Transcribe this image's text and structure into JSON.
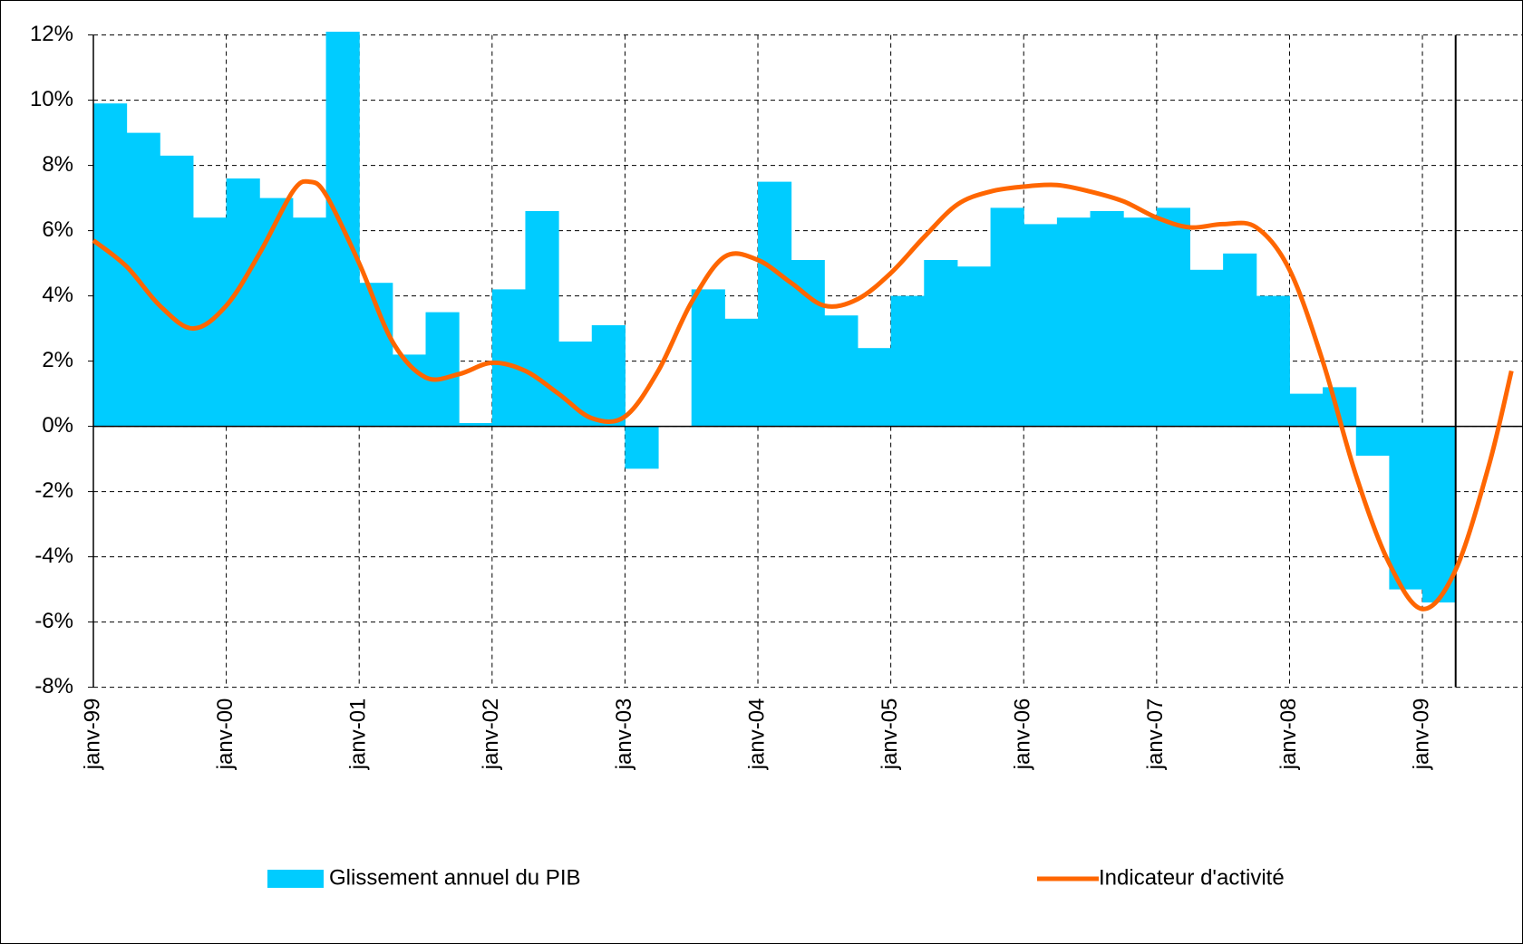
{
  "chart_data": {
    "type": "bar-line",
    "categories": [
      "janv-99",
      null,
      null,
      null,
      "janv-00",
      null,
      null,
      null,
      "janv-01",
      null,
      null,
      null,
      "janv-02",
      null,
      null,
      null,
      "janv-03",
      null,
      null,
      null,
      "janv-04",
      null,
      null,
      null,
      "janv-05",
      null,
      null,
      null,
      "janv-06",
      null,
      null,
      null,
      "janv-07",
      null,
      null,
      null,
      "janv-08",
      null,
      null,
      null,
      "janv-09"
    ],
    "xlim": [
      1999,
      2009.75
    ],
    "ylim": [
      -8,
      12
    ],
    "yticks": [
      {
        "value": 12,
        "label": "12%"
      },
      {
        "value": 10,
        "label": "10%"
      },
      {
        "value": 8,
        "label": "8%"
      },
      {
        "value": 6,
        "label": "6%"
      },
      {
        "value": 4,
        "label": "4%"
      },
      {
        "value": 2,
        "label": "2%"
      },
      {
        "value": 0,
        "label": "0%"
      },
      {
        "value": -2,
        "label": "-2%"
      },
      {
        "value": -4,
        "label": "-4%"
      },
      {
        "value": -6,
        "label": "-6%"
      },
      {
        "value": -8,
        "label": "-8%"
      }
    ],
    "grid": true,
    "series": [
      {
        "name": "Glissement annuel du PIB",
        "type": "bar",
        "color": "#00ccff",
        "values": [
          9.9,
          9.0,
          8.3,
          6.4,
          7.6,
          7.0,
          6.4,
          12.1,
          4.4,
          2.2,
          3.5,
          0.1,
          4.2,
          6.6,
          2.6,
          3.1,
          -1.3,
          0,
          4.2,
          3.3,
          7.5,
          5.1,
          3.4,
          2.4,
          4.0,
          5.1,
          4.9,
          6.7,
          6.2,
          6.4,
          6.6,
          6.4,
          6.7,
          4.8,
          5.3,
          4.0,
          1.0,
          1.2,
          -0.9,
          -5.0,
          -5.4
        ]
      },
      {
        "name": "Indicateur d'activité",
        "type": "line",
        "color": "#ff6600",
        "x": [
          1999,
          1999.25,
          1999.5,
          1999.75,
          2000,
          2000.25,
          2000.5,
          2000.625,
          2000.75,
          2001,
          2001.25,
          2001.5,
          2001.75,
          2002,
          2002.25,
          2002.5,
          2002.75,
          2003,
          2003.25,
          2003.5,
          2003.75,
          2004,
          2004.25,
          2004.5,
          2004.75,
          2005,
          2005.25,
          2005.5,
          2005.75,
          2006,
          2006.25,
          2006.5,
          2006.75,
          2007,
          2007.25,
          2007.5,
          2007.75,
          2008,
          2008.25,
          2008.5,
          2008.75,
          2009,
          2009.25,
          2009.5,
          2009.67
        ],
        "values": [
          5.7,
          4.9,
          3.7,
          3.0,
          3.7,
          5.3,
          7.2,
          7.5,
          7.1,
          5.0,
          2.6,
          1.5,
          1.6,
          1.95,
          1.7,
          1.0,
          0.25,
          0.3,
          1.7,
          3.8,
          5.2,
          5.1,
          4.4,
          3.7,
          3.9,
          4.7,
          5.8,
          6.8,
          7.2,
          7.35,
          7.4,
          7.2,
          6.9,
          6.4,
          6.1,
          6.2,
          6.1,
          4.8,
          2.0,
          -1.5,
          -4.2,
          -5.6,
          -4.4,
          -1.2,
          1.7
        ]
      }
    ]
  }
}
